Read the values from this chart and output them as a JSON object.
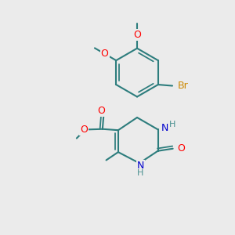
{
  "background_color": "#ebebeb",
  "bond_color": "#2d7d7d",
  "bond_width": 1.5,
  "atom_colors": {
    "O": "#ff0000",
    "N": "#0000cd",
    "Br": "#cc8800",
    "H_label": "#4a9090",
    "C": "#2d7d7d"
  },
  "figsize": [
    3.0,
    3.0
  ],
  "dpi": 100
}
